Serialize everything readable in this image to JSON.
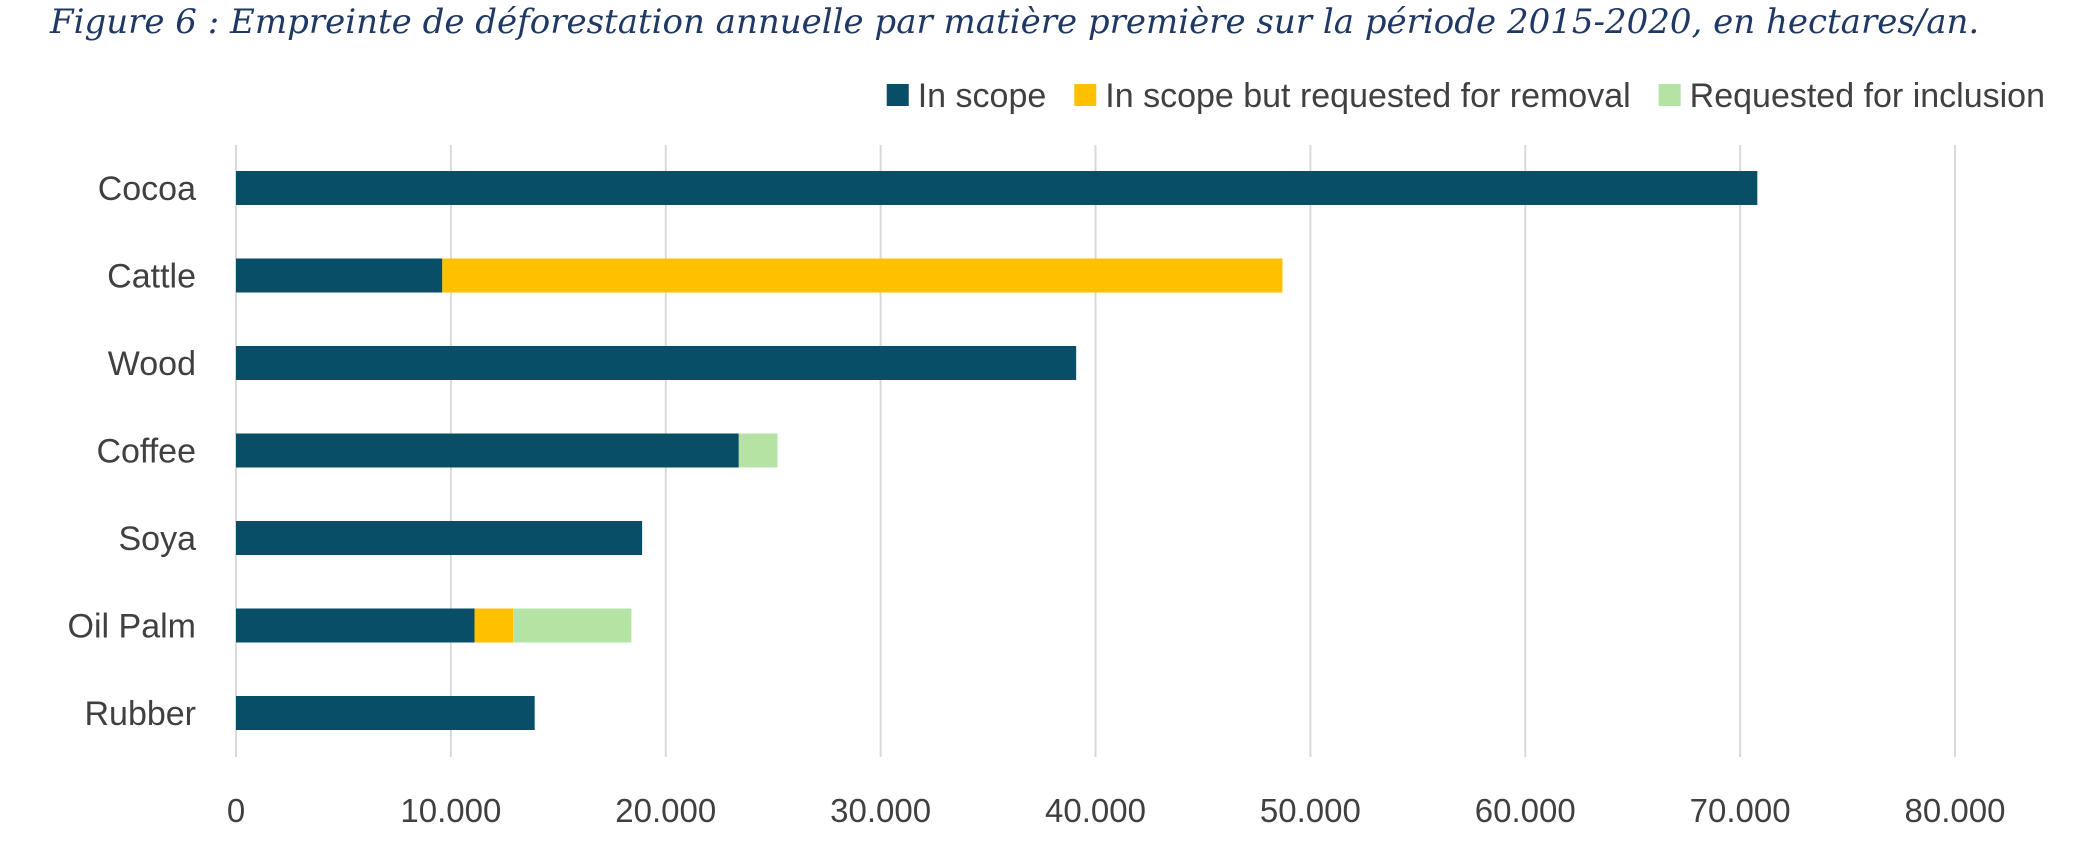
{
  "caption": "Figure 6 : Empreinte de déforestation annuelle par matière première sur la période 2015-2020, en hectares/an.",
  "chart_data": {
    "type": "bar",
    "orientation": "horizontal",
    "stacked": true,
    "title": "",
    "xlabel": "",
    "ylabel": "",
    "categories": [
      "Cocoa",
      "Cattle",
      "Wood",
      "Coffee",
      "Soya",
      "Oil Palm",
      "Rubber"
    ],
    "series": [
      {
        "name": "In scope",
        "color": "#074e66",
        "values": [
          70800,
          9600,
          39100,
          23400,
          18900,
          11100,
          13900
        ]
      },
      {
        "name": "In scope but requested for removal",
        "color": "#ffc000",
        "values": [
          0,
          39100,
          0,
          0,
          0,
          1800,
          0
        ]
      },
      {
        "name": "Requested for inclusion",
        "color": "#b4e3a4",
        "values": [
          0,
          0,
          0,
          1800,
          0,
          5500,
          0
        ]
      }
    ],
    "xlim": [
      0,
      80000
    ],
    "x_ticks": [
      0,
      10000,
      20000,
      30000,
      40000,
      50000,
      60000,
      70000,
      80000
    ],
    "x_tick_labels": [
      "0",
      "10.000",
      "20.000",
      "30.000",
      "40.000",
      "50.000",
      "60.000",
      "70.000",
      "80.000"
    ],
    "grid": "vertical",
    "gridline_color": "#d9d9d9",
    "legend_position": "top-right"
  }
}
